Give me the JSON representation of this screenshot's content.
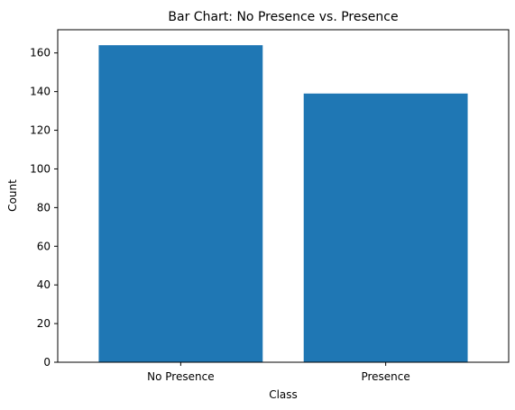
{
  "chart_data": {
    "type": "bar",
    "title": "Bar Chart: No Presence vs. Presence",
    "xlabel": "Class",
    "ylabel": "Count",
    "categories": [
      "No Presence",
      "Presence"
    ],
    "values": [
      164,
      139
    ],
    "ylim": [
      0,
      172
    ],
    "yticks": [
      0,
      20,
      40,
      60,
      80,
      100,
      120,
      140,
      160
    ],
    "grid": false,
    "legend": "none",
    "bar_color": "#1f77b4"
  }
}
